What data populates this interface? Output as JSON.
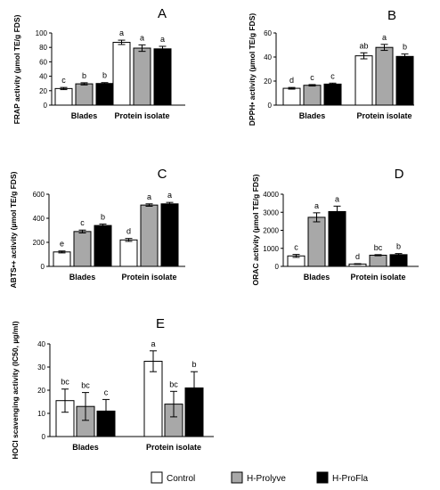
{
  "chart_data": [
    {
      "type": "bar",
      "panel_label": "A",
      "ylabel": "FRAP activity (µmol TE/g FDS)",
      "ylim": [
        0,
        100
      ],
      "yticks": [
        "0",
        "20",
        "40",
        "60",
        "80",
        "100"
      ],
      "categories": [
        "Blades",
        "Protein isolate"
      ],
      "series": [
        {
          "name": "Control",
          "values": [
            23,
            87
          ],
          "errors": [
            1.5,
            3
          ],
          "letters": [
            "c",
            "a"
          ]
        },
        {
          "name": "H-Prolyve",
          "values": [
            29.5,
            79
          ],
          "errors": [
            1.5,
            4.5
          ],
          "letters": [
            "b",
            "a"
          ]
        },
        {
          "name": "H-ProFla",
          "values": [
            30,
            78
          ],
          "errors": [
            1.2,
            3.5
          ],
          "letters": [
            "b",
            "a"
          ]
        }
      ]
    },
    {
      "type": "bar",
      "panel_label": "B",
      "ylabel": "DPPH• activity (µmol TE/g FDS)",
      "ylim": [
        0,
        60
      ],
      "yticks": [
        "0",
        "20",
        "40",
        "60"
      ],
      "categories": [
        "Blades",
        "Protein isolate"
      ],
      "series": [
        {
          "name": "Control",
          "values": [
            14,
            41
          ],
          "errors": [
            0.7,
            2.5
          ],
          "letters": [
            "d",
            "ab"
          ]
        },
        {
          "name": "H-Prolyve",
          "values": [
            16.5,
            48
          ],
          "errors": [
            0.6,
            2.5
          ],
          "letters": [
            "c",
            "a"
          ]
        },
        {
          "name": "H-ProFla",
          "values": [
            17.5,
            40.5
          ],
          "errors": [
            0.8,
            2
          ],
          "letters": [
            "c",
            "b"
          ]
        }
      ]
    },
    {
      "type": "bar",
      "panel_label": "C",
      "ylabel": "ABTS•+ activity (µmol TE/g FDS)",
      "ylim": [
        0,
        600
      ],
      "yticks": [
        "0",
        "200",
        "400",
        "600"
      ],
      "categories": [
        "Blades",
        "Protein isolate"
      ],
      "series": [
        {
          "name": "Control",
          "values": [
            120,
            220
          ],
          "errors": [
            8,
            12
          ],
          "letters": [
            "e",
            "d"
          ]
        },
        {
          "name": "H-Prolyve",
          "values": [
            290,
            510
          ],
          "errors": [
            12,
            10
          ],
          "letters": [
            "c",
            "a"
          ]
        },
        {
          "name": "H-ProFla",
          "values": [
            340,
            520
          ],
          "errors": [
            12,
            12
          ],
          "letters": [
            "b",
            "a"
          ]
        }
      ]
    },
    {
      "type": "bar",
      "panel_label": "D",
      "ylabel": "ORAC activity (µmol TE/g FDS)",
      "ylim": [
        0,
        4000
      ],
      "yticks": [
        "0",
        "1000",
        "2000",
        "3000",
        "4000"
      ],
      "categories": [
        "Blades",
        "Protein isolate"
      ],
      "series": [
        {
          "name": "Control",
          "values": [
            580,
            130
          ],
          "errors": [
            80,
            20
          ],
          "letters": [
            "c",
            "d"
          ]
        },
        {
          "name": "H-Prolyve",
          "values": [
            2720,
            620
          ],
          "errors": [
            250,
            30
          ],
          "letters": [
            "a",
            "bc"
          ]
        },
        {
          "name": "H-ProFla",
          "values": [
            3040,
            650
          ],
          "errors": [
            300,
            60
          ],
          "letters": [
            "a",
            "b"
          ]
        }
      ]
    },
    {
      "type": "bar",
      "panel_label": "E",
      "ylabel": "HOCl scavenging activity (IC50, µg/ml)",
      "ylim": [
        0,
        40
      ],
      "yticks": [
        "0",
        "10",
        "20",
        "30",
        "40"
      ],
      "categories": [
        "Blades",
        "Protein isolate"
      ],
      "series": [
        {
          "name": "Control",
          "values": [
            15.5,
            32.5
          ],
          "errors": [
            5,
            4.5
          ],
          "letters": [
            "bc",
            "a"
          ]
        },
        {
          "name": "H-Prolyve",
          "values": [
            13,
            14
          ],
          "errors": [
            6,
            5.5
          ],
          "letters": [
            "bc",
            "bc"
          ]
        },
        {
          "name": "H-ProFla",
          "values": [
            11,
            21
          ],
          "errors": [
            5,
            7
          ],
          "letters": [
            "c",
            "b"
          ]
        }
      ]
    }
  ],
  "legend": {
    "items": [
      {
        "name": "Control",
        "color": "#ffffff"
      },
      {
        "name": "H-Prolyve",
        "color": "#a8a8a8"
      },
      {
        "name": "H-ProFla",
        "color": "#000000"
      }
    ]
  }
}
